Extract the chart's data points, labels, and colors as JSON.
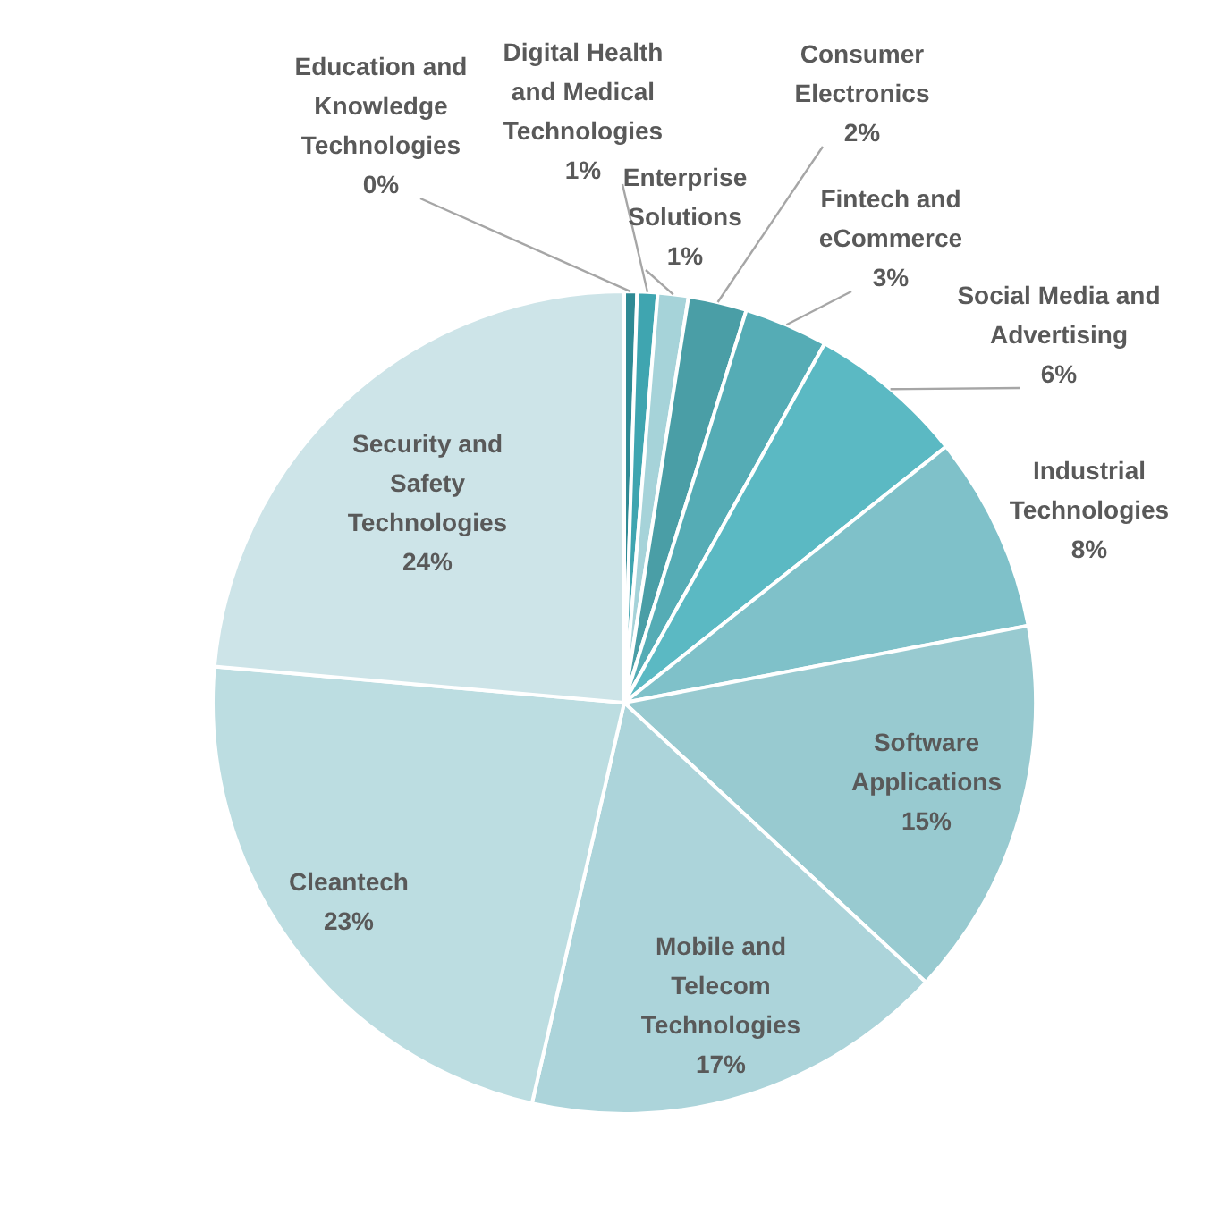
{
  "chart_data": {
    "type": "pie",
    "categories": [
      "Education and Knowledge Technologies",
      "Digital Health and Medical Technologies",
      "Enterprise Solutions",
      "Consumer Electronics",
      "Fintech and eCommerce",
      "Social Media and Advertising",
      "Industrial Technologies",
      "Software Applications",
      "Mobile and Telecom Technologies",
      "Cleantech",
      "Security and Safety Technologies"
    ],
    "values": [
      0.5,
      0.8,
      1.2,
      2.3,
      3.3,
      6.2,
      7.7,
      14.9,
      16.7,
      22.8,
      23.6
    ],
    "value_labels": [
      "0%",
      "1%",
      "1%",
      "2%",
      "3%",
      "6%",
      "8%",
      "15%",
      "17%",
      "23%",
      "24%"
    ],
    "colors": [
      "#2f8a94",
      "#3fa5b0",
      "#a6d3d9",
      "#4a9ea6",
      "#55acb5",
      "#5bb9c3",
      "#7fc1c9",
      "#98cad0",
      "#acd4da",
      "#bcdde1",
      "#cde4e8"
    ]
  }
}
